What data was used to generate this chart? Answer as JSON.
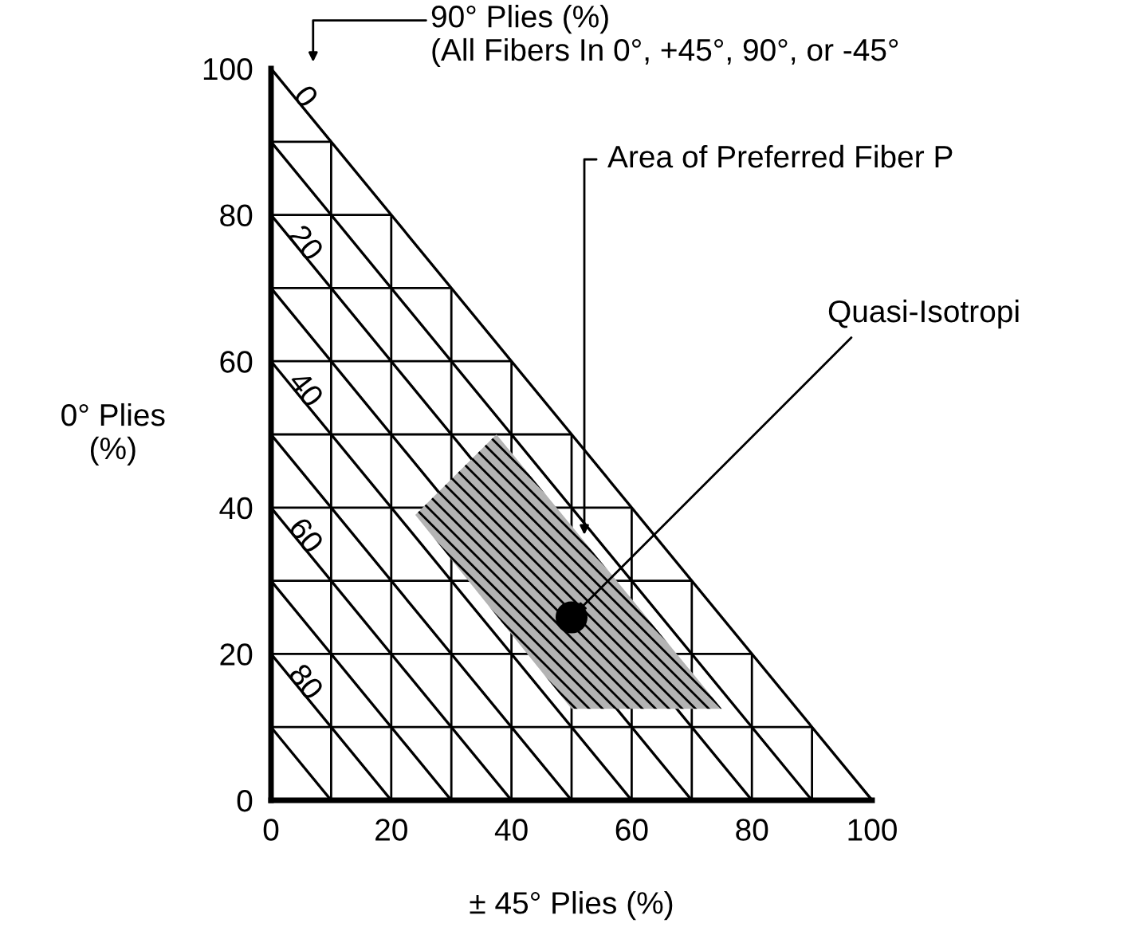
{
  "chart_data": {
    "type": "scatter",
    "xlabel": "± 45° Plies (%)",
    "ylabel": "0° Plies\n(%)",
    "xlim": [
      0,
      100
    ],
    "ylim": [
      0,
      100
    ],
    "xticks": [
      0,
      {
        "value": 10,
        "label": null
      },
      20,
      {
        "value": 30,
        "label": null
      },
      40,
      {
        "value": 50,
        "label": null
      },
      60,
      {
        "value": 70,
        "label": null
      },
      80,
      {
        "value": 90,
        "label": null
      },
      100
    ],
    "yticks": [
      0,
      {
        "value": 10,
        "label": null
      },
      20,
      {
        "value": 30,
        "label": null
      },
      40,
      {
        "value": 50,
        "label": null
      },
      60,
      {
        "value": 70,
        "label": null
      },
      80,
      {
        "value": 90,
        "label": null
      },
      100
    ],
    "grid": true,
    "series": [
      {
        "type": "area",
        "color": "#b3b3b3",
        "x": [
          24,
          37.5,
          75,
          50
        ],
        "values": [
          39,
          50,
          12.5,
          12.5
        ]
      },
      {
        "color": "#000000",
        "marker": "circle",
        "x": [
          50
        ],
        "values": [
          25
        ]
      }
    ],
    "annotations": [
      "90° Plies (%)\n(All Fibers In 0°, +45°, 90°, or -45°",
      "Area of Preferred Fiber P",
      {
        "text": "Quasi-Isotropi",
        "x": 50,
        "y": 25
      },
      "0",
      "20",
      "40",
      "60",
      "80"
    ]
  }
}
